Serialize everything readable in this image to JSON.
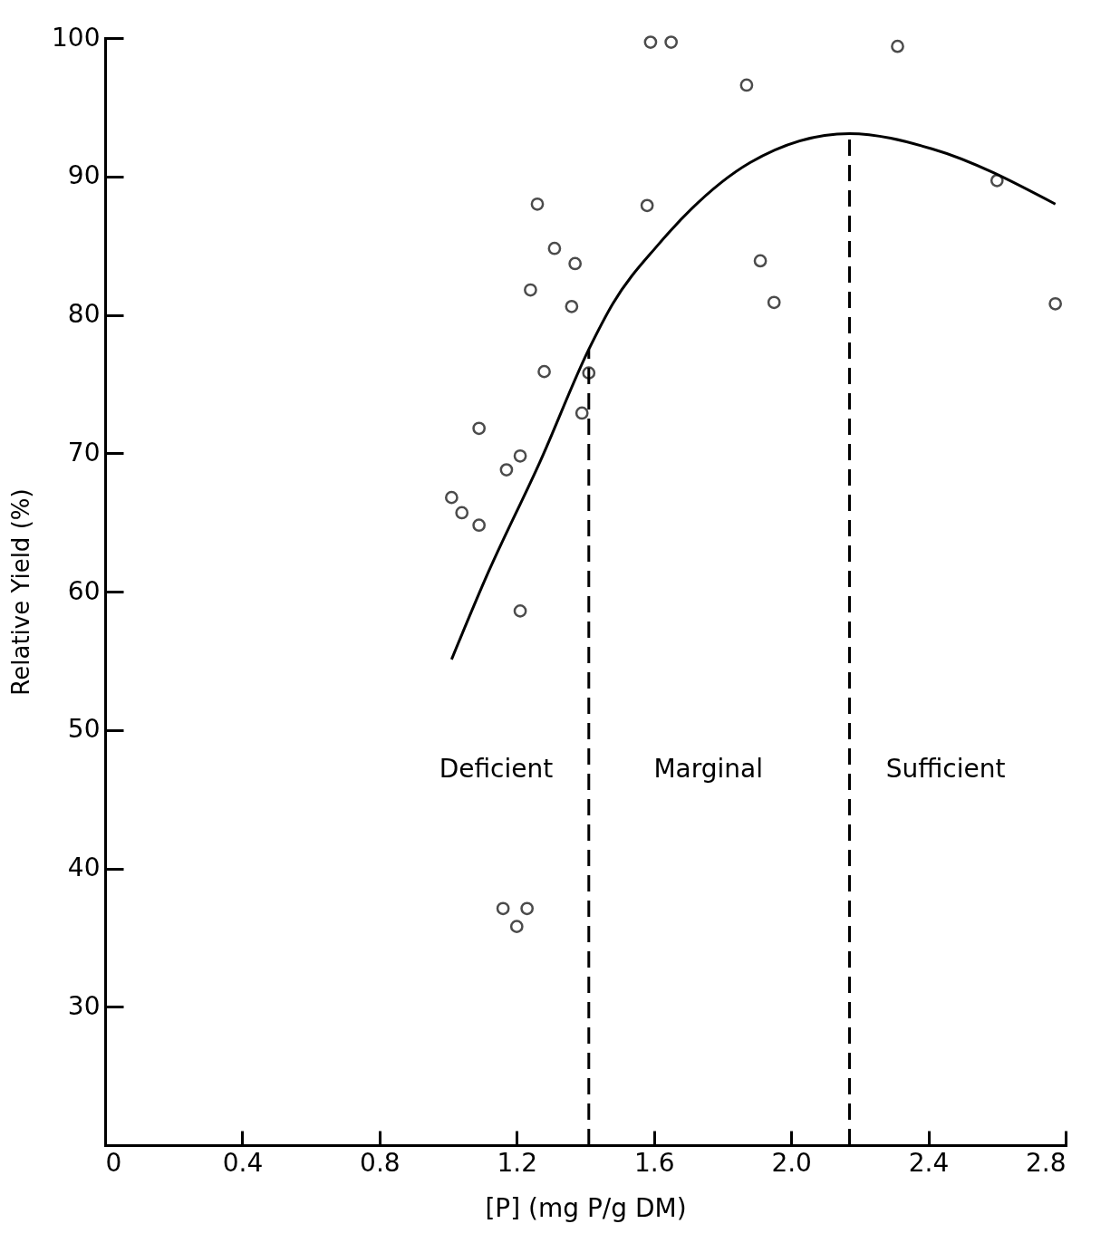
{
  "chart_data": {
    "type": "scatter",
    "xlabel": "[P]  (mg P/g DM)",
    "ylabel": "Relative  Yield  (%)",
    "xlim": [
      0,
      2.8
    ],
    "ylim": [
      20,
      100
    ],
    "xticks": [
      {
        "value": 0,
        "label": "0"
      },
      0.4,
      0.8,
      1.2,
      1.6,
      {
        "value": 2,
        "label": "2.0"
      },
      2.4,
      2.8
    ],
    "yticks": [
      30,
      40,
      50,
      60,
      70,
      80,
      90,
      100
    ],
    "grid": false,
    "legend": false,
    "marker": "circle",
    "series": [
      {
        "color": "#000000",
        "x": [
          1.01,
          1.04,
          1.09,
          1.09,
          1.17,
          1.21,
          1.24,
          1.26,
          1.28,
          1.31,
          1.37,
          1.36,
          1.39,
          1.41,
          1.21,
          1.16,
          1.23,
          1.2,
          1.59,
          1.65,
          1.58,
          1.87,
          1.91,
          1.95,
          2.31,
          2.6,
          2.77
        ],
        "values": [
          66.8,
          65.7,
          64.8,
          71.8,
          68.8,
          69.8,
          81.8,
          88.0,
          75.9,
          84.8,
          83.7,
          80.6,
          72.9,
          75.8,
          58.6,
          37.1,
          37.1,
          35.8,
          99.7,
          99.7,
          87.9,
          96.6,
          83.9,
          80.9,
          99.4,
          89.7,
          80.8
        ]
      },
      {
        "type": "line",
        "color": "#000000",
        "marker": "none",
        "x": [
          1.01,
          1.11,
          1.27,
          1.41,
          1.48,
          1.61,
          1.88,
          2.17,
          2.41,
          2.77
        ],
        "values": [
          55.1,
          61.0,
          69.5,
          77.5,
          80.8,
          85.0,
          91.0,
          93.1,
          92.0,
          88.0
        ]
      }
    ],
    "ref_lines": [
      {
        "axis": "x",
        "value": 1.41,
        "line_style": "dashed",
        "color": "#000000"
      },
      {
        "axis": "x",
        "value": 2.17,
        "line_style": "dashed",
        "color": "#000000"
      }
    ],
    "annotations": [
      "Deficient",
      "Marginal",
      "Sufficient"
    ]
  }
}
